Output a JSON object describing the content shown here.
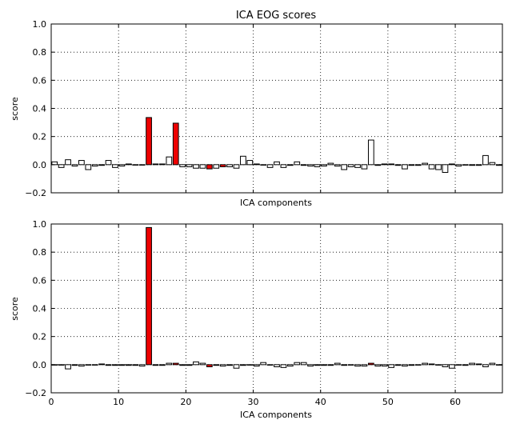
{
  "chart_data": [
    {
      "type": "bar",
      "title": "ICA EOG scores",
      "xlabel": "ICA components",
      "ylabel": "score",
      "ylim": [
        -0.2,
        1.0
      ],
      "xlim": [
        0,
        67
      ],
      "grid": true,
      "xticks": [],
      "yticks": [
        "−0.2",
        "0.0",
        "0.2",
        "0.4",
        "0.6",
        "0.8",
        "1.0"
      ],
      "x": [
        0,
        1,
        2,
        3,
        4,
        5,
        6,
        7,
        8,
        9,
        10,
        11,
        12,
        13,
        14,
        15,
        16,
        17,
        18,
        19,
        20,
        21,
        22,
        23,
        24,
        25,
        26,
        27,
        28,
        29,
        30,
        31,
        32,
        33,
        34,
        35,
        36,
        37,
        38,
        39,
        40,
        41,
        42,
        43,
        44,
        45,
        46,
        47,
        48,
        49,
        50,
        51,
        52,
        53,
        54,
        55,
        56,
        57,
        58,
        59,
        60,
        61,
        62,
        63,
        64,
        65,
        66
      ],
      "values": [
        0.02,
        -0.02,
        0.035,
        -0.01,
        0.03,
        -0.035,
        -0.01,
        -0.005,
        0.03,
        -0.02,
        -0.01,
        0.005,
        0.0,
        0.0,
        0.335,
        0.005,
        0.005,
        0.055,
        0.295,
        -0.015,
        -0.015,
        -0.025,
        -0.025,
        -0.03,
        -0.025,
        -0.015,
        -0.015,
        -0.025,
        0.06,
        0.03,
        0.005,
        0.0,
        -0.02,
        0.02,
        -0.02,
        -0.005,
        0.02,
        -0.005,
        -0.01,
        -0.015,
        -0.01,
        0.01,
        -0.01,
        -0.035,
        -0.015,
        -0.02,
        -0.03,
        0.175,
        -0.005,
        0.005,
        0.005,
        -0.005,
        -0.03,
        -0.005,
        -0.005,
        0.01,
        -0.03,
        -0.035,
        -0.055,
        0.005,
        -0.01,
        0.0,
        -0.005,
        -0.005,
        0.065,
        0.015,
        -0.005
      ],
      "highlighted": [
        14,
        18,
        23,
        25,
        48
      ],
      "colors": {
        "normal": "#ffffff",
        "highlight": "#ee0000",
        "edge": "#000000"
      }
    },
    {
      "type": "bar",
      "title": "",
      "xlabel": "ICA components",
      "ylabel": "score",
      "ylim": [
        -0.2,
        1.0
      ],
      "xlim": [
        0,
        67
      ],
      "grid": true,
      "xticks": [
        "0",
        "10",
        "20",
        "30",
        "40",
        "50",
        "60"
      ],
      "yticks": [
        "−0.2",
        "0.0",
        "0.2",
        "0.4",
        "0.6",
        "0.8",
        "1.0"
      ],
      "x": [
        0,
        1,
        2,
        3,
        4,
        5,
        6,
        7,
        8,
        9,
        10,
        11,
        12,
        13,
        14,
        15,
        16,
        17,
        18,
        19,
        20,
        21,
        22,
        23,
        24,
        25,
        26,
        27,
        28,
        29,
        30,
        31,
        32,
        33,
        34,
        35,
        36,
        37,
        38,
        39,
        40,
        41,
        42,
        43,
        44,
        45,
        46,
        47,
        48,
        49,
        50,
        51,
        52,
        53,
        54,
        55,
        56,
        57,
        58,
        59,
        60,
        61,
        62,
        63,
        64,
        65,
        66
      ],
      "values": [
        0.0,
        0.0,
        -0.03,
        -0.005,
        -0.01,
        0.0,
        0.0,
        0.005,
        -0.005,
        -0.005,
        -0.005,
        -0.005,
        -0.005,
        -0.01,
        0.975,
        -0.005,
        -0.005,
        0.01,
        0.01,
        -0.005,
        -0.005,
        0.02,
        0.01,
        -0.015,
        -0.005,
        -0.01,
        -0.005,
        -0.025,
        -0.005,
        0.0,
        -0.01,
        0.015,
        0.0,
        -0.015,
        -0.02,
        -0.01,
        0.015,
        0.015,
        -0.01,
        -0.005,
        -0.005,
        -0.005,
        0.01,
        -0.005,
        0.0,
        -0.01,
        -0.01,
        0.01,
        -0.01,
        -0.01,
        -0.02,
        -0.005,
        -0.01,
        -0.005,
        0.0,
        0.01,
        0.005,
        0.0,
        -0.015,
        -0.025,
        0.0,
        -0.005,
        0.01,
        0.005,
        -0.015,
        0.01,
        0.0
      ],
      "highlighted": [
        14,
        18,
        23,
        47
      ],
      "colors": {
        "normal": "#ffffff",
        "highlight": "#ee0000",
        "edge": "#000000"
      }
    }
  ]
}
